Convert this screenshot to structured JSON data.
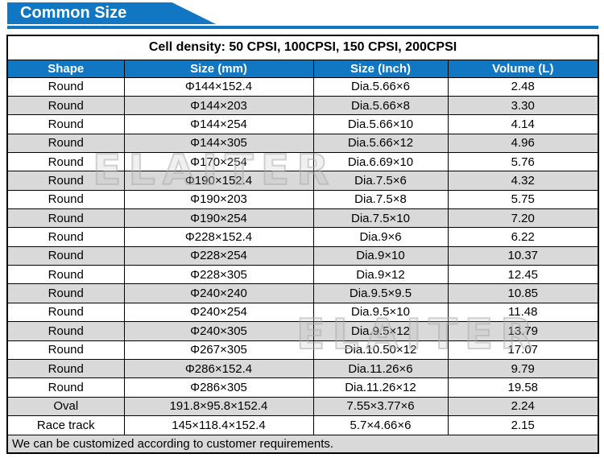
{
  "banner": {
    "title": "Common Size"
  },
  "table": {
    "density_note": "Cell density: 50 CPSI, 100CPSI, 150 CPSI, 200CPSI",
    "columns": [
      "Shape",
      "Size (mm)",
      "Size (Inch)",
      "Volume (L)"
    ],
    "rows": [
      [
        "Round",
        "Φ144×152.4",
        "Dia.5.66×6",
        "2.48"
      ],
      [
        "Round",
        "Φ144×203",
        "Dia.5.66×8",
        "3.30"
      ],
      [
        "Round",
        "Φ144×254",
        "Dia.5.66×10",
        "4.14"
      ],
      [
        "Round",
        "Φ144×305",
        "Dia.5.66×12",
        "4.96"
      ],
      [
        "Round",
        "Φ170×254",
        "Dia.6.69×10",
        "5.76"
      ],
      [
        "Round",
        "Φ190×152.4",
        "Dia.7.5×6",
        "4.32"
      ],
      [
        "Round",
        "Φ190×203",
        "Dia.7.5×8",
        "5.75"
      ],
      [
        "Round",
        "Φ190×254",
        "Dia.7.5×10",
        "7.20"
      ],
      [
        "Round",
        "Φ228×152.4",
        "Dia.9×6",
        "6.22"
      ],
      [
        "Round",
        "Φ228×254",
        "Dia.9×10",
        "10.37"
      ],
      [
        "Round",
        "Φ228×305",
        "Dia.9×12",
        "12.45"
      ],
      [
        "Round",
        "Φ240×240",
        "Dia.9.5×9.5",
        "10.85"
      ],
      [
        "Round",
        "Φ240×254",
        "Dia.9.5×10",
        "11.48"
      ],
      [
        "Round",
        "Φ240×305",
        "Dia.9.5×12",
        "13.79"
      ],
      [
        "Round",
        "Φ267×305",
        "Dia.10.50×12",
        "17.07"
      ],
      [
        "Round",
        "Φ286×152.4",
        "Dia.11.26×6",
        "9.79"
      ],
      [
        "Round",
        "Φ286×305",
        "Dia.11.26×12",
        "19.58"
      ],
      [
        "Oval",
        "191.8×95.8×152.4",
        "7.55×3.77×6",
        "2.24"
      ],
      [
        "Race track",
        "145×118.4×152.4",
        "5.7×4.66×6",
        "2.15"
      ]
    ],
    "footer_note": "We can be customized according to customer requirements."
  },
  "watermark": {
    "text": "ELAITER"
  },
  "colors": {
    "accent_blue": "#1277C2",
    "row_alt_gray": "#D9D9D9",
    "border_black": "#000000"
  }
}
